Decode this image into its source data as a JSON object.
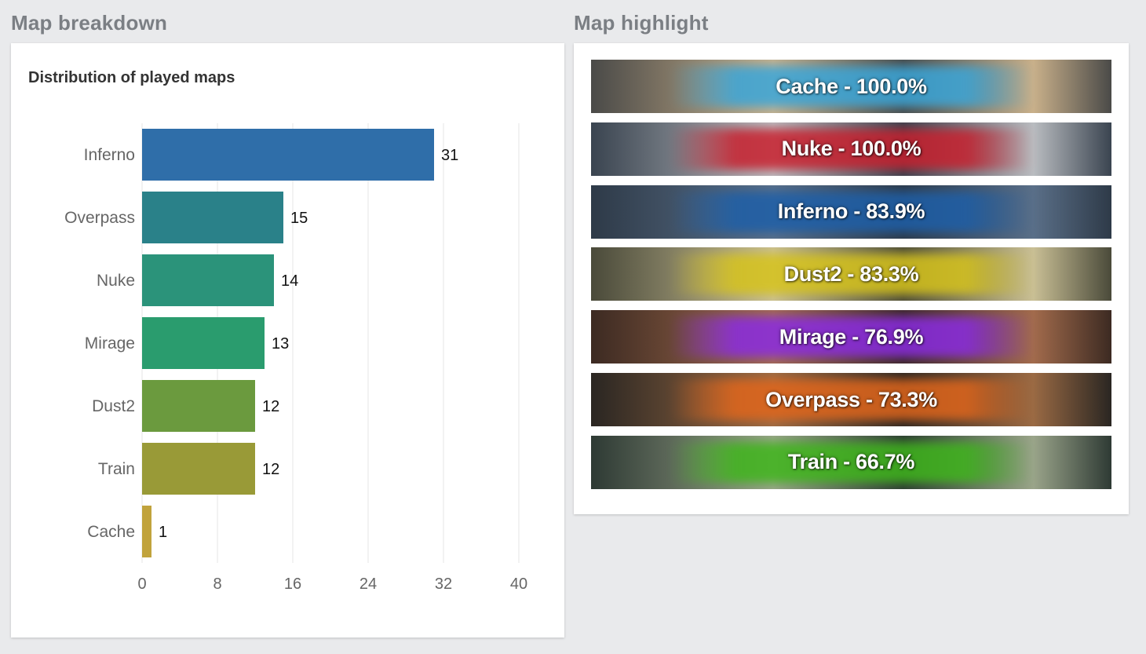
{
  "left_section": {
    "title": "Map breakdown",
    "chart_title": "Distribution of played maps"
  },
  "right_section": {
    "title": "Map highlight",
    "banners": [
      {
        "text": "Cache - 100.0%",
        "color": "#3aa6d9",
        "bg_dark": "#4a4a48",
        "bg_light": "#c9b08a"
      },
      {
        "text": "Nuke - 100.0%",
        "color": "#c8202e",
        "bg_dark": "#3a4450",
        "bg_light": "#b9bcc0"
      },
      {
        "text": "Inferno - 83.9%",
        "color": "#1e5fa8",
        "bg_dark": "#2e3a48",
        "bg_light": "#5a6f88"
      },
      {
        "text": "Dust2 - 83.3%",
        "color": "#d6c31c",
        "bg_dark": "#4a4a3a",
        "bg_light": "#c9bf95"
      },
      {
        "text": "Mirage - 76.9%",
        "color": "#8a2be2",
        "bg_dark": "#3c2a22",
        "bg_light": "#a26b4c"
      },
      {
        "text": "Overpass - 73.3%",
        "color": "#e0661c",
        "bg_dark": "#2a2622",
        "bg_light": "#9a6a44"
      },
      {
        "text": "Train - 66.7%",
        "color": "#3fb51c",
        "bg_dark": "#2e3a34",
        "bg_light": "#9aa48a"
      }
    ]
  },
  "chart_data": {
    "type": "bar",
    "orientation": "horizontal",
    "title": "Distribution of played maps",
    "categories": [
      "Inferno",
      "Overpass",
      "Nuke",
      "Mirage",
      "Dust2",
      "Train",
      "Cache"
    ],
    "values": [
      31,
      15,
      14,
      13,
      12,
      12,
      1
    ],
    "colors": [
      "#2f6ea9",
      "#2a8189",
      "#2b937a",
      "#2a9c6e",
      "#6b9a3e",
      "#999a37",
      "#c1a33c"
    ],
    "xlim": [
      0,
      40
    ],
    "xticks": [
      0,
      8,
      16,
      24,
      32,
      40
    ],
    "grid": true
  }
}
